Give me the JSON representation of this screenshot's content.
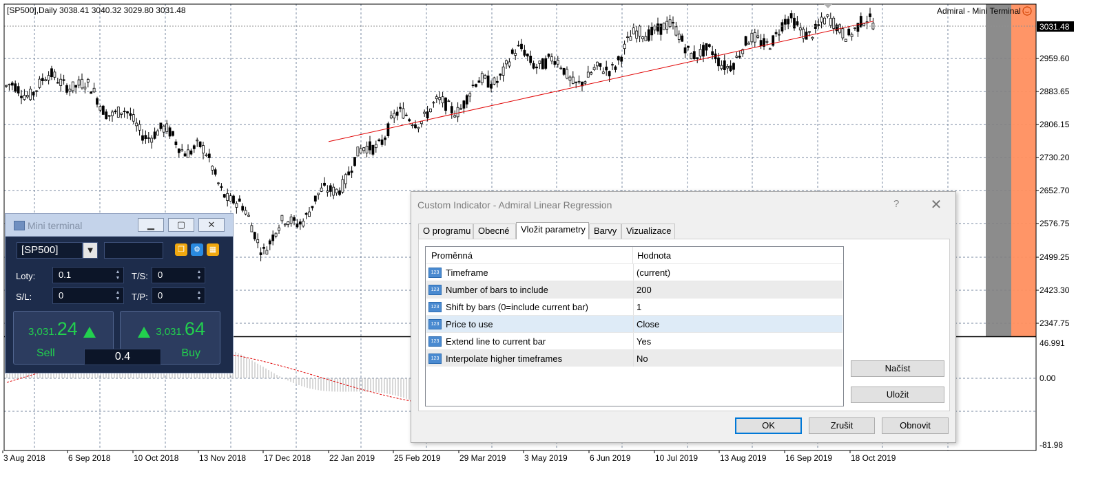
{
  "chart": {
    "header": "[SP500],Daily  3038.41 3040.32 3029.80 3031.48",
    "brand": "Admiral - Mini Terminal",
    "current_price": "3031.48",
    "price_axis": [
      "2959.60",
      "2883.65",
      "2806.15",
      "2730.20",
      "2652.70",
      "2576.75",
      "2499.25",
      "2423.30",
      "2347.75"
    ],
    "indicator_axis": [
      "46.991",
      "0.00",
      "-81.98"
    ],
    "date_axis": [
      "3 Aug 2018",
      "6 Sep 2018",
      "10 Oct 2018",
      "13 Nov 2018",
      "17 Dec 2018",
      "22 Jan 2019",
      "25 Feb 2019",
      "29 Mar 2019",
      "3 May 2019",
      "6 Jun 2019",
      "10 Jul 2019",
      "13 Aug 2019",
      "16 Sep 2019",
      "18 Oct 2019"
    ],
    "colors": {
      "candles": "#000000",
      "regression": "#e00000",
      "indicator_signal": "#e00000",
      "indicator_hist": "#b0b0b0",
      "grid": "#7a8aa0",
      "gray_band": "#7f7f7f",
      "orange_band": "#ff8f5f"
    }
  },
  "chart_data": {
    "type": "line",
    "title": "[SP500],Daily",
    "y_axis_range": [
      2330,
      3050
    ],
    "series": [
      {
        "x": [
          "3 Aug 2018",
          "6 Sep 2018",
          "10 Oct 2018",
          "13 Nov 2018",
          "17 Dec 2018",
          "22 Jan 2019",
          "25 Feb 2019",
          "29 Mar 2019",
          "3 May 2019",
          "6 Jun 2019",
          "10 Jul 2019",
          "13 Aug 2019",
          "16 Sep 2019",
          "18 Oct 2019"
        ],
        "y": [
          2855,
          2890,
          2790,
          2735,
          2530,
          2640,
          2795,
          2835,
          2945,
          2880,
          3010,
          2920,
          3000,
          3000
        ]
      }
    ],
    "regression_line": {
      "x": [
        "22 Jan 2019",
        "18 Oct 2019"
      ],
      "y": [
        2752,
        3013
      ]
    }
  },
  "mini_terminal": {
    "title": "Mini terminal",
    "symbol": "[SP500]",
    "lots_label": "Loty:",
    "lots_value": "0.1",
    "ts_label": "T/S:",
    "ts_value": "0",
    "sl_label": "S/L:",
    "sl_value": "0",
    "tp_label": "T/P:",
    "tp_value": "0",
    "sell_price_small": "3,031.",
    "sell_price_big": "24",
    "sell_label": "Sell",
    "buy_price_small": "3,031.",
    "buy_price_big": "64",
    "buy_label": "Buy",
    "lot_display": "0.4"
  },
  "dialog": {
    "title": "Custom Indicator - Admiral Linear Regression",
    "help": "?",
    "close": "✕",
    "tabs": [
      "O programu",
      "Obecné",
      "Vložit parametry",
      "Barvy",
      "Vizualizace"
    ],
    "active_tab": 2,
    "col_variable": "Proměnná",
    "col_value": "Hodnota",
    "params": [
      {
        "name": "Timeframe",
        "value": "(current)"
      },
      {
        "name": "Number of bars to include",
        "value": "200"
      },
      {
        "name": "Shift by bars (0=include current bar)",
        "value": "1"
      },
      {
        "name": "Price to use",
        "value": "Close"
      },
      {
        "name": "Extend line to current bar",
        "value": "Yes"
      },
      {
        "name": "Interpolate higher timeframes",
        "value": "No"
      }
    ],
    "btn_load": "Načíst",
    "btn_save": "Uložit",
    "btn_ok": "OK",
    "btn_cancel": "Zrušit",
    "btn_reset": "Obnovit"
  }
}
